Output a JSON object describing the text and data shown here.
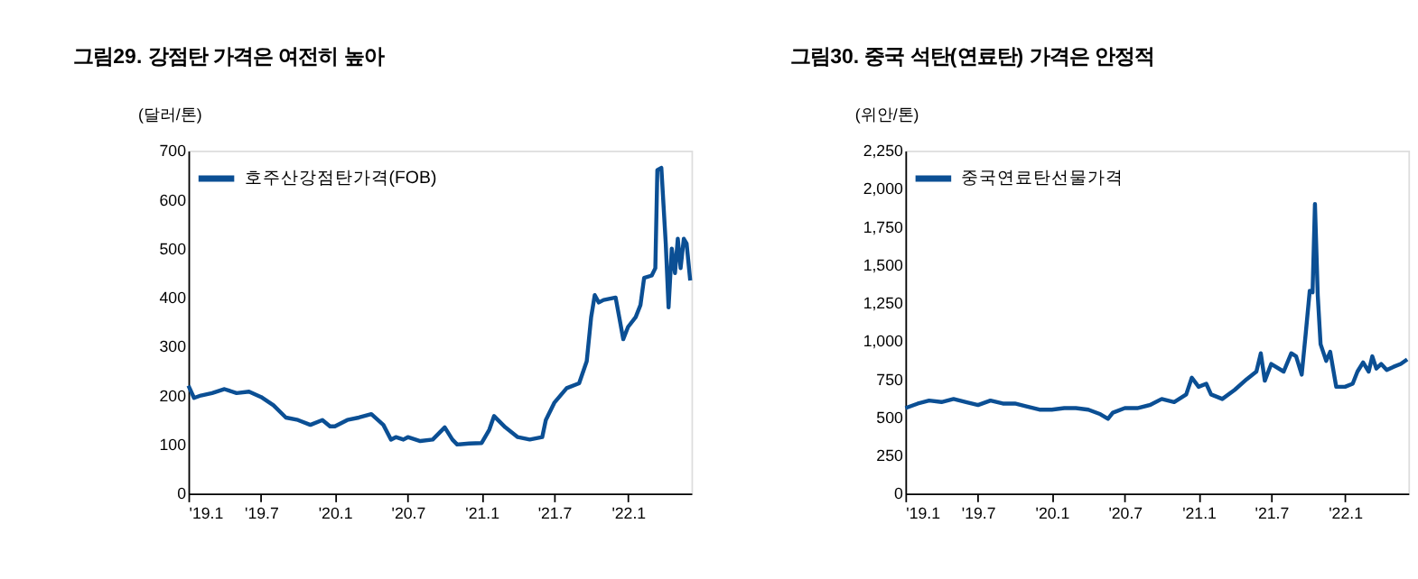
{
  "chart_data": [
    {
      "type": "line",
      "title": "그림29. 강점탄 가격은 여전히 높아",
      "ylabel": "(달러/톤)",
      "legend": "top left",
      "grid": false,
      "x": [
        "2019-01-01",
        "2019-01-15",
        "2019-02-01",
        "2019-03-01",
        "2019-04-01",
        "2019-05-01",
        "2019-06-01",
        "2019-07-01",
        "2019-08-01",
        "2019-09-01",
        "2019-10-01",
        "2019-11-01",
        "2019-12-01",
        "2019-12-20",
        "2020-01-01",
        "2020-02-01",
        "2020-03-01",
        "2020-04-01",
        "2020-05-01",
        "2020-05-20",
        "2020-06-01",
        "2020-06-20",
        "2020-07-01",
        "2020-08-01",
        "2020-09-01",
        "2020-10-01",
        "2020-10-20",
        "2020-11-01",
        "2020-12-01",
        "2021-01-01",
        "2021-01-20",
        "2021-02-01",
        "2021-03-01",
        "2021-04-01",
        "2021-05-01",
        "2021-06-01",
        "2021-06-10",
        "2021-07-01",
        "2021-08-01",
        "2021-09-01",
        "2021-09-20",
        "2021-10-01",
        "2021-10-10",
        "2021-10-20",
        "2021-11-01",
        "2021-12-01",
        "2021-12-10",
        "2021-12-20",
        "2022-01-01",
        "2022-01-20",
        "2022-02-01",
        "2022-02-10",
        "2022-03-01",
        "2022-03-10",
        "2022-03-15",
        "2022-03-25",
        "2022-04-05",
        "2022-04-12",
        "2022-04-20",
        "2022-04-28",
        "2022-05-05",
        "2022-05-12",
        "2022-05-20",
        "2022-05-27",
        "2022-06-05"
      ],
      "series": [
        {
          "name": "호주산강점탄가격(FOB)",
          "color": "#0b4f94",
          "values": [
            220,
            195,
            200,
            205,
            213,
            205,
            208,
            197,
            180,
            155,
            150,
            140,
            150,
            137,
            137,
            150,
            155,
            162,
            140,
            110,
            115,
            110,
            115,
            107,
            110,
            135,
            110,
            100,
            102,
            103,
            130,
            158,
            135,
            115,
            110,
            115,
            150,
            185,
            215,
            225,
            270,
            360,
            405,
            390,
            395,
            400,
            360,
            315,
            340,
            360,
            385,
            440,
            445,
            460,
            660,
            665,
            510,
            380,
            500,
            450,
            520,
            460,
            520,
            510,
            435
          ]
        }
      ],
      "xlim": [
        "2019-01-01",
        "2022-06-08"
      ],
      "xticks": [
        {
          "value": "2019-01-01",
          "label": "'19.1"
        },
        {
          "value": "2019-07-01",
          "label": "'19.7"
        },
        {
          "value": "2020-01-01",
          "label": "'20.1"
        },
        {
          "value": "2020-07-01",
          "label": "'20.7"
        },
        {
          "value": "2021-01-01",
          "label": "'21.1"
        },
        {
          "value": "2021-07-01",
          "label": "'21.7"
        },
        {
          "value": "2022-01-01",
          "label": "'22.1"
        }
      ],
      "ylim": [
        0,
        700
      ],
      "yticks": [
        0,
        100,
        200,
        300,
        400,
        500,
        600,
        700
      ]
    },
    {
      "type": "line",
      "title": "그림30. 중국 석탄(연료탄) 가격은 안정적",
      "ylabel": "(위안/톤)",
      "legend": "top left",
      "grid": false,
      "x": [
        "2019-01-01",
        "2019-02-01",
        "2019-03-01",
        "2019-04-01",
        "2019-05-01",
        "2019-06-01",
        "2019-07-01",
        "2019-08-01",
        "2019-09-01",
        "2019-10-01",
        "2019-11-01",
        "2019-12-01",
        "2020-01-01",
        "2020-02-01",
        "2020-03-01",
        "2020-04-01",
        "2020-05-01",
        "2020-05-20",
        "2020-06-01",
        "2020-07-01",
        "2020-08-01",
        "2020-09-01",
        "2020-10-01",
        "2020-11-01",
        "2020-12-01",
        "2020-12-15",
        "2021-01-01",
        "2021-01-20",
        "2021-02-01",
        "2021-03-01",
        "2021-04-01",
        "2021-05-01",
        "2021-05-25",
        "2021-06-05",
        "2021-06-15",
        "2021-07-01",
        "2021-08-01",
        "2021-08-20",
        "2021-09-01",
        "2021-09-15",
        "2021-09-25",
        "2021-10-05",
        "2021-10-12",
        "2021-10-18",
        "2021-10-25",
        "2021-11-01",
        "2021-11-15",
        "2021-11-25",
        "2021-12-10",
        "2022-01-01",
        "2022-01-20",
        "2022-02-01",
        "2022-02-15",
        "2022-03-01",
        "2022-03-10",
        "2022-03-20",
        "2022-04-01",
        "2022-04-15",
        "2022-05-01",
        "2022-05-20",
        "2022-06-05"
      ],
      "series": [
        {
          "name": "중국연료탄선물가격",
          "color": "#0b4f94",
          "values": [
            560,
            590,
            610,
            600,
            620,
            600,
            580,
            610,
            590,
            590,
            570,
            550,
            550,
            560,
            560,
            550,
            520,
            490,
            530,
            560,
            560,
            580,
            620,
            600,
            650,
            760,
            700,
            720,
            650,
            620,
            680,
            750,
            800,
            920,
            740,
            850,
            800,
            920,
            900,
            780,
            1050,
            1330,
            1320,
            1900,
            1300,
            980,
            870,
            930,
            700,
            700,
            720,
            800,
            860,
            800,
            900,
            820,
            850,
            810,
            830,
            850,
            880
          ]
        }
      ],
      "xlim": [
        "2019-01-01",
        "2022-06-08"
      ],
      "xticks": [
        {
          "value": "2019-01-01",
          "label": "'19.1"
        },
        {
          "value": "2019-07-01",
          "label": "'19.7"
        },
        {
          "value": "2020-01-01",
          "label": "'20.1"
        },
        {
          "value": "2020-07-01",
          "label": "'20.7"
        },
        {
          "value": "2021-01-01",
          "label": "'21.1"
        },
        {
          "value": "2021-07-01",
          "label": "'21.7"
        },
        {
          "value": "2022-01-01",
          "label": "'22.1"
        }
      ],
      "ylim": [
        0,
        2250
      ],
      "yticks": [
        {
          "value": 0,
          "label": "0"
        },
        {
          "value": 250,
          "label": "250"
        },
        {
          "value": 500,
          "label": "500"
        },
        {
          "value": 750,
          "label": "750"
        },
        {
          "value": 1000,
          "label": "1,000"
        },
        {
          "value": 1250,
          "label": "1,250"
        },
        {
          "value": 1500,
          "label": "1,500"
        },
        {
          "value": 1750,
          "label": "1,750"
        },
        {
          "value": 2000,
          "label": "2,000"
        },
        {
          "value": 2250,
          "label": "2,250"
        }
      ]
    }
  ]
}
